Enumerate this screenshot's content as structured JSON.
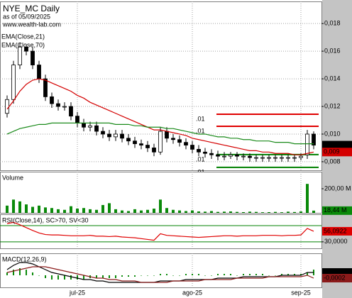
{
  "chart_data": [
    {
      "type": "candlestick",
      "title": "NYE_MC Daily",
      "subtitle": "as of 05/09/2025",
      "source": "www.wealth-lab.com",
      "color": "#000000",
      "grid": true,
      "ylim": [
        0.00738,
        0.0196
      ],
      "yticks": [
        {
          "value": 0.008,
          "label": "0,008"
        },
        {
          "value": 0.01,
          "label": "0,010"
        },
        {
          "value": 0.012,
          "label": "0,012"
        },
        {
          "value": 0.014,
          "label": "0,014"
        },
        {
          "value": 0.016,
          "label": "0,016"
        },
        {
          "value": 0.018,
          "label": "0,018"
        }
      ],
      "open": [
        0.0115,
        0.0125,
        0.015,
        0.0163,
        0.016,
        0.015,
        0.014,
        0.0127,
        0.0122,
        0.012,
        0.012,
        0.0113,
        0.0108,
        0.0105,
        0.0106,
        0.0102,
        0.01,
        0.0098,
        0.01,
        0.0097,
        0.0095,
        0.0093,
        0.0092,
        0.009,
        0.0087,
        0.0102,
        0.0097,
        0.0096,
        0.0094,
        0.0092,
        0.0089,
        0.0087,
        0.0086,
        0.0085,
        0.0084,
        0.0084,
        0.0085,
        0.0084,
        0.0084,
        0.0083,
        0.0083,
        0.0083,
        0.0083,
        0.0083,
        0.0083,
        0.0083,
        0.0083,
        0.0085,
        0.01
      ],
      "high": [
        0.0128,
        0.0153,
        0.0166,
        0.0165,
        0.0163,
        0.0153,
        0.0143,
        0.013,
        0.0125,
        0.0123,
        0.0123,
        0.0116,
        0.0111,
        0.0109,
        0.0109,
        0.0105,
        0.0103,
        0.0103,
        0.0103,
        0.01,
        0.0098,
        0.0096,
        0.0095,
        0.0093,
        0.0105,
        0.0105,
        0.01,
        0.0099,
        0.0097,
        0.0095,
        0.0092,
        0.009,
        0.0089,
        0.0088,
        0.0087,
        0.0087,
        0.0087,
        0.0086,
        0.0086,
        0.0085,
        0.0085,
        0.0085,
        0.0085,
        0.0085,
        0.0085,
        0.0085,
        0.0086,
        0.0103,
        0.0102
      ],
      "low": [
        0.0112,
        0.0122,
        0.0147,
        0.0157,
        0.0147,
        0.0137,
        0.0124,
        0.0119,
        0.0117,
        0.0117,
        0.011,
        0.0105,
        0.0102,
        0.0102,
        0.0099,
        0.0097,
        0.0095,
        0.0095,
        0.0094,
        0.0092,
        0.009,
        0.0089,
        0.0087,
        0.0084,
        0.0085,
        0.0094,
        0.0093,
        0.0091,
        0.0089,
        0.0086,
        0.0084,
        0.0083,
        0.0082,
        0.0081,
        0.0081,
        0.0082,
        0.0081,
        0.0081,
        0.008,
        0.008,
        0.008,
        0.008,
        0.008,
        0.008,
        0.008,
        0.008,
        0.0081,
        0.0082,
        0.0089
      ],
      "close": [
        0.0125,
        0.015,
        0.0163,
        0.016,
        0.015,
        0.014,
        0.0127,
        0.0122,
        0.012,
        0.012,
        0.0113,
        0.0108,
        0.0105,
        0.0106,
        0.0102,
        0.01,
        0.0098,
        0.01,
        0.0097,
        0.0095,
        0.0093,
        0.0092,
        0.009,
        0.0087,
        0.0102,
        0.0097,
        0.0096,
        0.0094,
        0.0092,
        0.0089,
        0.0087,
        0.0086,
        0.0085,
        0.0084,
        0.0084,
        0.0085,
        0.0084,
        0.0084,
        0.0083,
        0.0083,
        0.0083,
        0.0083,
        0.0083,
        0.0083,
        0.0083,
        0.0083,
        0.0084,
        0.01,
        0.0092
      ],
      "close_labels": [
        null,
        null,
        null,
        null,
        null,
        null,
        null,
        null,
        null,
        null,
        null,
        null,
        null,
        null,
        null,
        null,
        null,
        null,
        null,
        null,
        null,
        null,
        null,
        null,
        null,
        null,
        null,
        null,
        null,
        null,
        null,
        null,
        null,
        null,
        null,
        null,
        null,
        null,
        null,
        null,
        null,
        null,
        null,
        null,
        null,
        null,
        null,
        null,
        "0,009"
      ],
      "series": [
        {
          "name": "EMA(Close,21)",
          "color": "#d40000",
          "values": [
            0.0118,
            0.0124,
            0.0131,
            0.0136,
            0.0139,
            0.014,
            0.0139,
            0.0137,
            0.0135,
            0.0133,
            0.0131,
            0.0128,
            0.0126,
            0.0123,
            0.0121,
            0.0119,
            0.0117,
            0.0115,
            0.0113,
            0.0111,
            0.0109,
            0.0107,
            0.0105,
            0.0103,
            0.0103,
            0.0102,
            0.0101,
            0.01,
            0.0099,
            0.0097,
            0.0096,
            0.0095,
            0.0094,
            0.0093,
            0.0092,
            0.0091,
            0.009,
            0.0089,
            0.0088,
            0.0088,
            0.0087,
            0.0087,
            0.0086,
            0.0086,
            0.0086,
            0.0085,
            0.0085,
            0.0086,
            0.0087
          ],
          "value_labels": [
            null,
            null,
            null,
            null,
            null,
            null,
            null,
            null,
            null,
            null,
            null,
            null,
            null,
            null,
            null,
            null,
            null,
            null,
            null,
            null,
            null,
            null,
            null,
            null,
            null,
            null,
            null,
            null,
            null,
            null,
            null,
            null,
            null,
            null,
            null,
            null,
            null,
            null,
            null,
            null,
            null,
            null,
            null,
            null,
            null,
            null,
            null,
            null,
            "0,009"
          ]
        },
        {
          "name": "EMA(Close,70)",
          "color": "#1a8a1a",
          "values": [
            0.01,
            0.0102,
            0.0104,
            0.0105,
            0.0106,
            0.0107,
            0.0107,
            0.0108,
            0.0108,
            0.0108,
            0.0108,
            0.0108,
            0.0108,
            0.0108,
            0.0108,
            0.0108,
            0.0108,
            0.0107,
            0.0107,
            0.0107,
            0.0106,
            0.0106,
            0.0105,
            0.0105,
            0.0105,
            0.0104,
            0.0104,
            0.0103,
            0.0102,
            0.0101,
            0.01,
            0.01,
            0.0099,
            0.0098,
            0.0098,
            0.0097,
            0.0097,
            0.0096,
            0.0096,
            0.0095,
            0.0095,
            0.0095,
            0.0094,
            0.0094,
            0.0094,
            0.0093,
            0.0093,
            0.0093,
            0.0093
          ]
        }
      ],
      "levels": [
        {
          "value": 0.011436,
          "label": ".01",
          "color": "#e00000"
        },
        {
          "value": 0.010564,
          "label": ".01",
          "color": "#e00000"
        },
        {
          "value": 0.008513,
          "label": ".01",
          "color": "#008000"
        },
        {
          "value": 0.00759,
          "label": ".01",
          "color": "#008000"
        }
      ]
    },
    {
      "type": "bar",
      "title": "Volume",
      "ylim": [
        0,
        341
      ],
      "yticks": [
        {
          "value": 200,
          "label": "200,00 M"
        }
      ],
      "series": [
        {
          "color": "#0a8a0a",
          "values": [
            60,
            110,
            95,
            70,
            50,
            60,
            45,
            40,
            30,
            25,
            55,
            35,
            40,
            30,
            25,
            65,
            80,
            30,
            20,
            15,
            30,
            20,
            25,
            35,
            110,
            40,
            25,
            20,
            15,
            20,
            12,
            10,
            15,
            8,
            10,
            12,
            8,
            6,
            10,
            8,
            5,
            6,
            8,
            5,
            10,
            7,
            12,
            240,
            18.44
          ],
          "value_labels": [
            null,
            null,
            null,
            null,
            null,
            null,
            null,
            null,
            null,
            null,
            null,
            null,
            null,
            null,
            null,
            null,
            null,
            null,
            null,
            null,
            null,
            null,
            null,
            null,
            null,
            null,
            null,
            null,
            null,
            null,
            null,
            null,
            null,
            null,
            null,
            null,
            null,
            null,
            null,
            null,
            null,
            null,
            null,
            null,
            null,
            null,
            null,
            null,
            "18,44 M"
          ]
        }
      ]
    },
    {
      "type": "line",
      "title": "RSI(Close,14), SC>70, SV<30",
      "ylim": [
        14,
        98
      ],
      "yticks": [
        {
          "value": 30,
          "label": "30,0000"
        }
      ],
      "levels": [
        {
          "value": 70,
          "color": "#008000"
        },
        {
          "value": 30,
          "color": "#008000"
        }
      ],
      "series": [
        {
          "color": "#e00000",
          "values": [
            75,
            78,
            72,
            65,
            58,
            52,
            48,
            47,
            47,
            46,
            45,
            45,
            45,
            46,
            44,
            44,
            43,
            44,
            42,
            41,
            40,
            38,
            36,
            34,
            50,
            46,
            45,
            44,
            43,
            42,
            41,
            42,
            43,
            44,
            45,
            45,
            44,
            45,
            45,
            45,
            46,
            46,
            46,
            45,
            46,
            46,
            47,
            63,
            56.0922
          ],
          "value_labels": [
            null,
            null,
            null,
            null,
            null,
            null,
            null,
            null,
            null,
            null,
            null,
            null,
            null,
            null,
            null,
            null,
            null,
            null,
            null,
            null,
            null,
            null,
            null,
            null,
            null,
            null,
            null,
            null,
            null,
            null,
            null,
            null,
            null,
            null,
            null,
            null,
            null,
            null,
            null,
            null,
            null,
            null,
            null,
            null,
            null,
            null,
            null,
            null,
            "56,0922"
          ]
        }
      ]
    },
    {
      "type": "line",
      "title": "MACD(12,26,9)",
      "ylim": [
        -0.00085,
        0.00155
      ],
      "categories": [
        null,
        null,
        null,
        null,
        null,
        null,
        null,
        null,
        null,
        null,
        null,
        "jul-25",
        null,
        null,
        null,
        null,
        null,
        null,
        null,
        null,
        null,
        null,
        null,
        null,
        null,
        null,
        null,
        null,
        null,
        "ago-25",
        null,
        null,
        null,
        null,
        null,
        null,
        null,
        null,
        null,
        null,
        null,
        null,
        null,
        null,
        null,
        null,
        "sep-25",
        null,
        null
      ],
      "histogram": {
        "color": "#0a8a0a",
        "values": [
          0.0002,
          0.0004,
          0.0005,
          0.0004,
          0.0002,
          0,
          -0.0002,
          -0.0003,
          -0.0003,
          -0.0003,
          -0.0003,
          -0.0003,
          -0.0003,
          -0.0002,
          -0.0002,
          -0.0002,
          -0.0002,
          -0.0002,
          -0.0001,
          -0.0001,
          -0.0001,
          0,
          0,
          0,
          0.0001,
          0.0001,
          0,
          0,
          0.0001,
          0.0001,
          0.0001,
          0,
          0,
          0.0001,
          0.0001,
          0.0001,
          0,
          0.0001,
          0.0001,
          0.0001,
          0.0001,
          0,
          0,
          0.0001,
          0.0001,
          0.0001,
          0.0001,
          0.0002,
          0.0004
        ]
      },
      "series": [
        {
          "color": "#000000",
          "values": [
            0.0004,
            0.0007,
            0.0009,
            0.0009,
            0.0008,
            0.0006,
            0.0004,
            0.0002,
            0.0001,
            0,
            -0.0001,
            -0.0002,
            -0.0003,
            -0.0003,
            -0.0004,
            -0.0004,
            -0.0005,
            -0.0005,
            -0.0005,
            -0.0005,
            -0.0005,
            -0.0005,
            -0.0005,
            -0.0005,
            -0.0004,
            -0.0004,
            -0.0004,
            -0.0004,
            -0.0003,
            -0.0003,
            -0.0003,
            -0.0003,
            -0.0003,
            -0.0002,
            -0.0002,
            -0.0002,
            -0.0002,
            -0.0001,
            -0.0001,
            -0.0001,
            -0.0001,
            -0.0001,
            -0.0001,
            0,
            0,
            0,
            0,
            0.0002,
            0.0002
          ],
          "value_labels": [
            null,
            null,
            null,
            null,
            null,
            null,
            null,
            null,
            null,
            null,
            null,
            null,
            null,
            null,
            null,
            null,
            null,
            null,
            null,
            null,
            null,
            null,
            null,
            null,
            null,
            null,
            null,
            null,
            null,
            null,
            null,
            null,
            null,
            null,
            null,
            null,
            null,
            null,
            null,
            null,
            null,
            null,
            null,
            null,
            null,
            null,
            null,
            null,
            "0,0002"
          ]
        },
        {
          "color": "#8b1a1a",
          "values": [
            0.0002,
            0.0003,
            0.0004,
            0.0005,
            0.0006,
            0.0006,
            0.0006,
            0.0005,
            0.0004,
            0.0003,
            0.0002,
            0.0001,
            0,
            -0.0001,
            -0.0002,
            -0.0002,
            -0.0003,
            -0.0003,
            -0.0004,
            -0.0004,
            -0.0004,
            -0.0005,
            -0.0005,
            -0.0005,
            -0.0005,
            -0.0005,
            -0.0004,
            -0.0004,
            -0.0004,
            -0.0004,
            -0.0004,
            -0.0003,
            -0.0003,
            -0.0003,
            -0.0003,
            -0.0003,
            -0.0002,
            -0.0002,
            -0.0002,
            -0.0002,
            -0.0002,
            -0.0001,
            -0.0001,
            -0.0001,
            -0.0001,
            -0.0001,
            -0.0001,
            0,
            -0.0002
          ],
          "value_labels": [
            null,
            null,
            null,
            null,
            null,
            null,
            null,
            null,
            null,
            null,
            null,
            null,
            null,
            null,
            null,
            null,
            null,
            null,
            null,
            null,
            null,
            null,
            null,
            null,
            null,
            null,
            null,
            null,
            null,
            null,
            null,
            null,
            null,
            null,
            null,
            null,
            null,
            null,
            null,
            null,
            null,
            null,
            null,
            null,
            null,
            null,
            null,
            null,
            "-0,0002"
          ]
        }
      ]
    }
  ]
}
